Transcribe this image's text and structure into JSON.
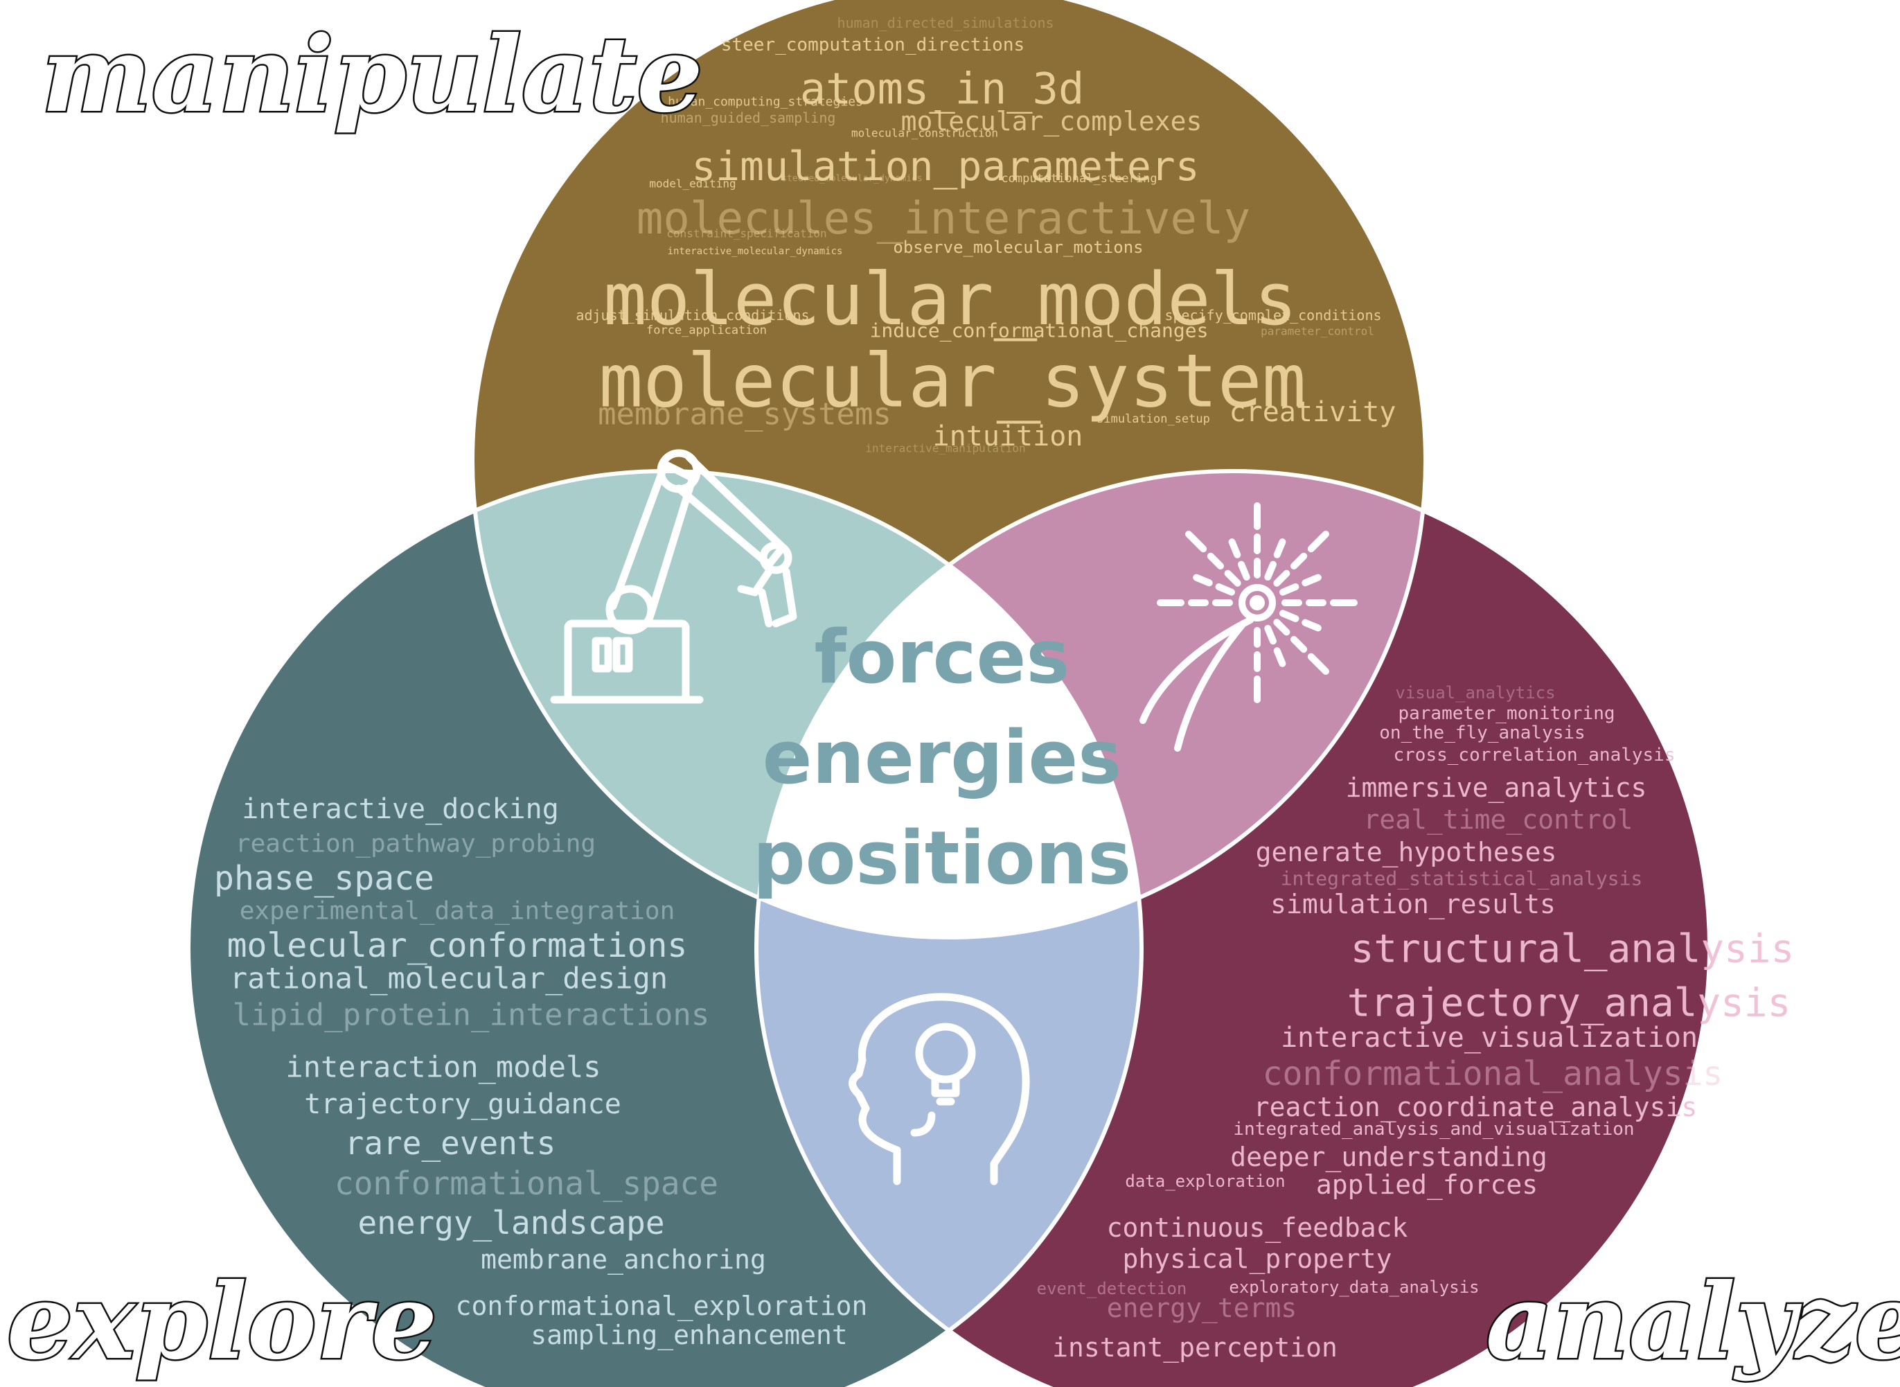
{
  "colors": {
    "top": "#8c6e37",
    "left": "#527378",
    "right": "#7c3350",
    "top_left": "#a9cdca",
    "top_right": "#c58dad",
    "bottom": "#a9bcdb",
    "center": "#ffffff",
    "center_text": "#7aa4ad",
    "top_text": "#ecd29a",
    "left_text": "#cfe4ea",
    "right_text": "#f0bfd3"
  },
  "corner_labels": {
    "manipulate": "manipulate",
    "explore": "explore",
    "analyze": "analyze"
  },
  "center_words": [
    "forces",
    "energies",
    "positions"
  ],
  "icons": {
    "top_left": "robot-arm-icon",
    "top_right": "fireworks-icon",
    "bottom": "head-lightbulb-icon"
  },
  "top_terms": [
    "human_directed_simulations",
    "steer_computation_directions",
    "atoms_in_3d",
    "human_computing_strategies",
    "molecular_complexes",
    "human_guided_sampling",
    "molecular_construction",
    "simulation_parameters",
    "model_editing",
    "steered_molecular_dynamics",
    "computational_steering",
    "molecules_interactively",
    "constraint_specification",
    "interactive_molecular_dynamics",
    "observe_molecular_motions",
    "molecular_models",
    "adjust_simulation_conditions",
    "specify_complex_conditions",
    "force_application",
    "induce_conformational_changes",
    "parameter_control",
    "molecular_system",
    "membrane_systems",
    "creativity",
    "intuition",
    "simulation_setup",
    "interactive_manipulation"
  ],
  "left_terms": [
    "interactive_docking",
    "reaction_pathway_probing",
    "phase_space",
    "experimental_data_integration",
    "molecular_conformations",
    "rational_molecular_design",
    "lipid_protein_interactions",
    "interaction_models",
    "trajectory_guidance",
    "rare_events",
    "conformational_space",
    "energy_landscape",
    "membrane_anchoring",
    "conformational_exploration",
    "sampling_enhancement"
  ],
  "right_terms": [
    "visual_analytics",
    "parameter_monitoring",
    "on_the_fly_analysis",
    "cross_correlation_analysis",
    "immersive_analytics",
    "real_time_control",
    "generate_hypotheses",
    "integrated_statistical_analysis",
    "simulation_results",
    "structural_analysis",
    "trajectory_analysis",
    "interactive_visualization",
    "conformational_analysis",
    "reaction_coordinate_analysis",
    "integrated_analysis_and_visualization",
    "deeper_understanding",
    "data_exploration",
    "applied_forces",
    "continuous_feedback",
    "physical_property",
    "event_detection",
    "exploratory_data_analysis",
    "energy_terms",
    "instant_perception"
  ]
}
